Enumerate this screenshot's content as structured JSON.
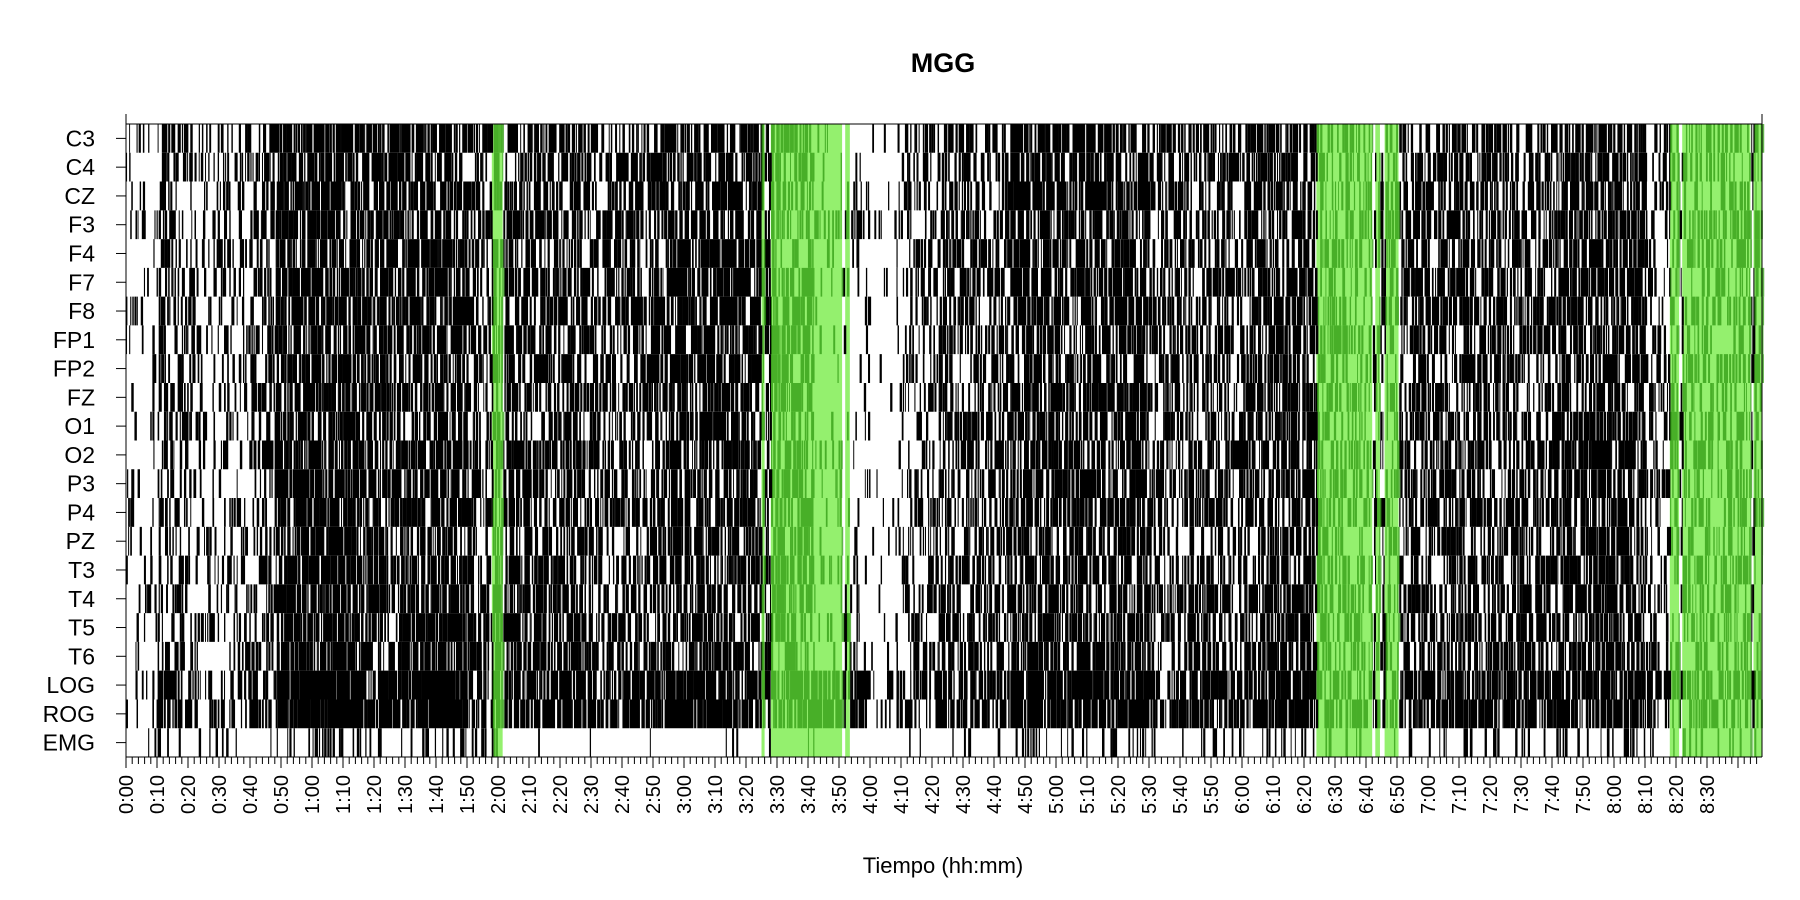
{
  "chart_data": {
    "type": "heatmap",
    "title": "MGG",
    "xlabel": "Tiempo (hh:mm)",
    "ylabel": "",
    "x_unit": "minutes",
    "xlim": [
      0,
      517
    ],
    "channels": [
      "C3",
      "C4",
      "CZ",
      "F3",
      "F4",
      "F7",
      "F8",
      "FP1",
      "FP2",
      "FZ",
      "O1",
      "O2",
      "P3",
      "P4",
      "PZ",
      "T3",
      "T4",
      "T5",
      "T6",
      "LOG",
      "ROG",
      "EMG"
    ],
    "x_ticks": [
      "0:00",
      "0:10",
      "0:20",
      "0:30",
      "0:40",
      "0:50",
      "1:00",
      "1:10",
      "1:20",
      "1:30",
      "1:40",
      "1:50",
      "2:00",
      "2:10",
      "2:20",
      "2:30",
      "2:40",
      "2:50",
      "3:00",
      "3:10",
      "3:20",
      "3:30",
      "3:40",
      "3:50",
      "4:00",
      "4:10",
      "4:20",
      "4:30",
      "4:40",
      "4:50",
      "5:00",
      "5:10",
      "5:20",
      "5:30",
      "5:40",
      "5:50",
      "6:00",
      "6:10",
      "6:20",
      "6:30",
      "6:40",
      "6:50",
      "7:00",
      "7:10",
      "7:20",
      "7:30",
      "7:40",
      "7:50",
      "8:00",
      "8:10",
      "8:20",
      "8:30"
    ],
    "highlight_color": "#94f06e",
    "mark_color": "#000000",
    "highlight_intervals": [
      [
        118,
        121.5
      ],
      [
        205,
        206
      ],
      [
        208,
        231
      ],
      [
        232,
        233.5
      ],
      [
        384,
        402
      ],
      [
        403,
        404.5
      ],
      [
        406,
        410.5
      ],
      [
        498,
        501
      ],
      [
        502,
        524
      ],
      [
        525,
        532.5
      ]
    ],
    "event_activity": [
      {
        "range": [
          0,
          10
        ],
        "level": 0.12
      },
      {
        "range": [
          10,
          20
        ],
        "level": 0.4
      },
      {
        "range": [
          20,
          40
        ],
        "level": 0.22
      },
      {
        "range": [
          40,
          48
        ],
        "level": 0.4
      },
      {
        "range": [
          48,
          75
        ],
        "level": 0.72
      },
      {
        "range": [
          75,
          95
        ],
        "level": 0.6
      },
      {
        "range": [
          95,
          110
        ],
        "level": 0.68
      },
      {
        "range": [
          110,
          118
        ],
        "level": 0.45
      },
      {
        "range": [
          118,
          150
        ],
        "level": 0.55
      },
      {
        "range": [
          150,
          170
        ],
        "level": 0.45
      },
      {
        "range": [
          170,
          205
        ],
        "level": 0.6
      },
      {
        "range": [
          205,
          240
        ],
        "level": 0.5
      },
      {
        "range": [
          240,
          250
        ],
        "level": 0.12
      },
      {
        "range": [
          250,
          262
        ],
        "level": 0.3
      },
      {
        "range": [
          262,
          285
        ],
        "level": 0.45
      },
      {
        "range": [
          285,
          330
        ],
        "level": 0.62
      },
      {
        "range": [
          330,
          365
        ],
        "level": 0.45
      },
      {
        "range": [
          365,
          384
        ],
        "level": 0.58
      },
      {
        "range": [
          384,
          411
        ],
        "level": 0.35
      },
      {
        "range": [
          411,
          460
        ],
        "level": 0.5
      },
      {
        "range": [
          460,
          490
        ],
        "level": 0.62
      },
      {
        "range": [
          490,
          532
        ],
        "level": 0.35
      },
      {
        "range": [
          532,
          539
        ],
        "level": 0.52
      }
    ]
  }
}
